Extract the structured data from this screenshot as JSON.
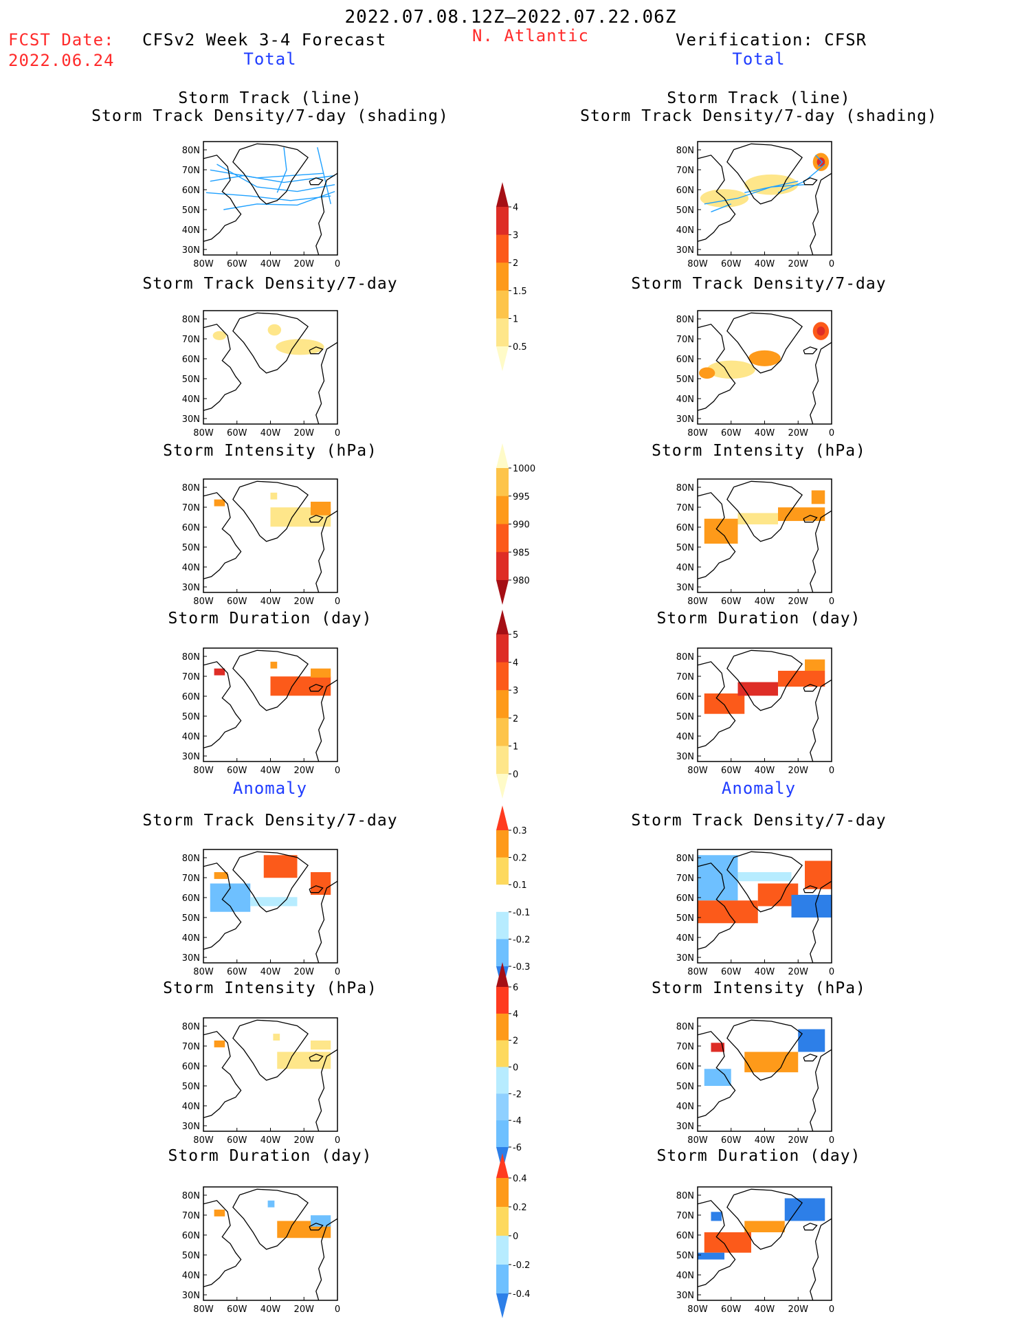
{
  "header": {
    "date_range": "2022.07.08.12Z–2022.07.22.06Z",
    "fcst_label": "FCST Date:",
    "fcst_date": "2022.06.24",
    "forecast_title": "CFSv2 Week 3-4 Forecast",
    "region": "N. Atlantic",
    "verification_title": "Verification: CFSR",
    "total_left": "Total",
    "total_right": "Total",
    "anomaly_left": "Anomaly",
    "anomaly_right": "Anomaly"
  },
  "axes": {
    "lat_ticks": [
      "80N",
      "70N",
      "60N",
      "50N",
      "40N",
      "30N"
    ],
    "lon_ticks": [
      "80W",
      "60W",
      "40W",
      "20W",
      "0"
    ]
  },
  "panels": {
    "track": {
      "line1": "Storm Track (line)",
      "line2": "Storm Track Density/7-day (shading)"
    },
    "density": "Storm Track Density/7-day",
    "intensity": "Storm Intensity (hPa)",
    "duration": "Storm Duration (day)"
  },
  "colorbars": {
    "density_total": {
      "labels": [
        "4",
        "3",
        "2",
        "1.5",
        "1",
        "0.5"
      ],
      "colors": [
        "#a50f15",
        "#de2d26",
        "#fc5a1a",
        "#fe9a1a",
        "#fdc44a",
        "#fee68a",
        "#fffbc8"
      ]
    },
    "intensity_total": {
      "labels": [
        "1000",
        "995",
        "990",
        "985",
        "980"
      ],
      "colors": [
        "#fffbc8",
        "#fdc44a",
        "#fe9a1a",
        "#fc5a1a",
        "#de2d26",
        "#a50f15"
      ]
    },
    "duration_total": {
      "labels": [
        "5",
        "4",
        "3",
        "2",
        "1",
        "0"
      ],
      "colors": [
        "#a50f15",
        "#de2d26",
        "#fc5a1a",
        "#fe9a1a",
        "#fdc44a",
        "#fee68a",
        "#fffbc8"
      ]
    },
    "density_anom": {
      "labels": [
        "0.3",
        "0.2",
        "0.1",
        "-0.1",
        "-0.2",
        "-0.3"
      ],
      "colors": [
        "#ff3b1f",
        "#fe9a1a",
        "#fdd95e",
        "#ffffff",
        "#b7ecff",
        "#6ec0ff",
        "#2d7fe8"
      ]
    },
    "intensity_anom": {
      "labels": [
        "6",
        "4",
        "2",
        "0",
        "-2",
        "-4",
        "-6"
      ],
      "colors": [
        "#a50f15",
        "#ff3b1f",
        "#fe9a1a",
        "#fdd95e",
        "#b7ecff",
        "#8fd0ff",
        "#6ec0ff",
        "#2d7fe8"
      ]
    },
    "duration_anom": {
      "labels": [
        "0.4",
        "0.2",
        "0",
        "-0.2",
        "-0.4"
      ],
      "colors": [
        "#ff3b1f",
        "#fe9a1a",
        "#fdd95e",
        "#b7ecff",
        "#6ec0ff",
        "#2d7fe8"
      ]
    }
  },
  "colors": {
    "red_text": "#ff2a2a",
    "blue_text": "#1f3cff",
    "track_line_forecast": "#1ea0ff",
    "track_line_obs": "#1ea0ff",
    "track_density": "#fee68a"
  }
}
